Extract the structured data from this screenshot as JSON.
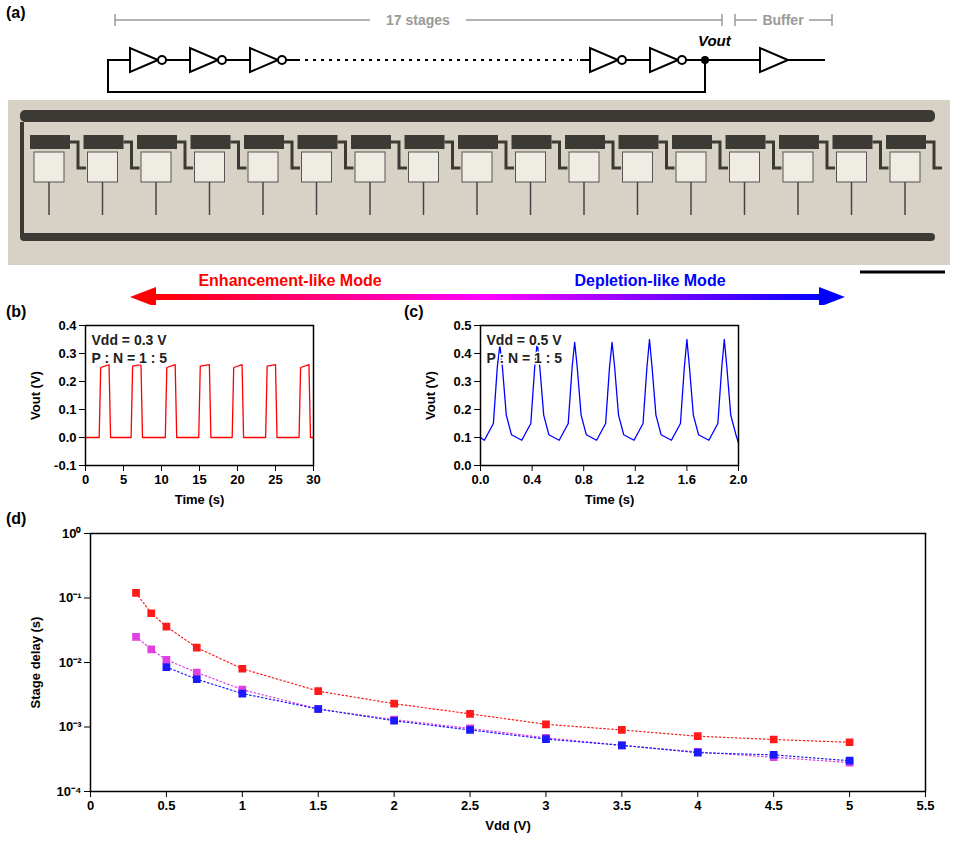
{
  "schematic": {
    "panel_label": "(a)",
    "stages_label": "17 stages",
    "buffer_label": "Buffer",
    "output_label": "Vout",
    "mode_arrow": {
      "left": "Enhancement-like Mode",
      "left_color": "#ff0000",
      "right": "Depletion-like Mode",
      "right_color": "#0000ff"
    }
  },
  "chart_data": [
    {
      "type": "line",
      "panel_label": "(b)",
      "xlabel": "Time (s)",
      "ylabel": "Vout (V)",
      "annotations": [
        "Vdd = 0.3 V",
        "P : N = 1 : 5"
      ],
      "xlim": [
        0,
        30
      ],
      "xticks": [
        0,
        5,
        10,
        15,
        20,
        25,
        30
      ],
      "ylim": [
        -0.1,
        0.4
      ],
      "yticks": [
        -0.1,
        {
          "value": 0,
          "label": "0.0"
        },
        0.1,
        0.2,
        0.3,
        0.4
      ],
      "grid": false,
      "x": [
        0,
        1.8,
        2.0,
        3.1,
        3.3,
        6.0,
        6.2,
        7.3,
        7.5,
        10.5,
        10.7,
        11.8,
        12.0,
        14.9,
        15.1,
        16.3,
        16.5,
        19.3,
        19.5,
        20.6,
        20.8,
        23.7,
        23.9,
        25.0,
        25.2,
        28.1,
        28.3,
        29.4,
        29.6,
        30
      ],
      "series": [
        {
          "color": "#ff0000",
          "values": [
            0,
            0,
            0.25,
            0.26,
            0,
            0,
            0.255,
            0.26,
            0,
            0,
            0.25,
            0.26,
            0,
            0,
            0.255,
            0.26,
            0,
            0,
            0.25,
            0.26,
            0,
            0,
            0.255,
            0.26,
            0,
            0,
            0.25,
            0.26,
            0,
            0
          ]
        }
      ]
    },
    {
      "type": "line",
      "panel_label": "(c)",
      "xlabel": "Time (s)",
      "ylabel": "Vout (V)",
      "annotations": [
        "Vdd = 0.5 V",
        "P : N = 1 : 5"
      ],
      "xlim": [
        0,
        2
      ],
      "xticks": [
        {
          "value": 0,
          "label": "0.0"
        },
        0.4,
        0.8,
        1.2,
        1.6,
        {
          "value": 2,
          "label": "2.0"
        }
      ],
      "ylim": [
        0,
        0.5
      ],
      "yticks": [
        {
          "value": 0,
          "label": "0.0"
        },
        0.1,
        0.2,
        0.3,
        0.4,
        0.5
      ],
      "grid": false,
      "x": [
        0,
        0.03,
        0.1,
        0.13,
        0.15,
        0.17,
        0.2,
        0.24,
        0.32,
        0.39,
        0.42,
        0.44,
        0.46,
        0.49,
        0.53,
        0.61,
        0.68,
        0.71,
        0.73,
        0.75,
        0.78,
        0.82,
        0.9,
        0.97,
        1,
        1.02,
        1.04,
        1.07,
        1.11,
        1.19,
        1.26,
        1.29,
        1.31,
        1.33,
        1.36,
        1.4,
        1.48,
        1.55,
        1.58,
        1.6,
        1.62,
        1.65,
        1.69,
        1.77,
        1.84,
        1.87,
        1.89,
        1.91,
        1.94,
        1.98,
        2
      ],
      "series": [
        {
          "color": "#0000ff",
          "values": [
            0.1,
            0.09,
            0.15,
            0.35,
            0.43,
            0.35,
            0.18,
            0.11,
            0.09,
            0.15,
            0.35,
            0.44,
            0.35,
            0.18,
            0.11,
            0.09,
            0.15,
            0.35,
            0.44,
            0.35,
            0.18,
            0.11,
            0.09,
            0.15,
            0.35,
            0.44,
            0.35,
            0.18,
            0.11,
            0.09,
            0.15,
            0.35,
            0.45,
            0.35,
            0.18,
            0.11,
            0.09,
            0.15,
            0.35,
            0.45,
            0.35,
            0.18,
            0.11,
            0.09,
            0.15,
            0.35,
            0.45,
            0.35,
            0.18,
            0.11,
            0.08
          ]
        }
      ]
    },
    {
      "type": "line",
      "panel_label": "(d)",
      "xlabel": "Vdd (V)",
      "ylabel": "Stage delay (s)",
      "log": "y",
      "grid": false,
      "marker": "square",
      "line_style": "dotted",
      "xlim": [
        0,
        5.5
      ],
      "xticks": [
        0,
        0.5,
        1,
        1.5,
        2,
        2.5,
        3,
        3.5,
        4,
        4.5,
        5,
        5.5
      ],
      "ylim": [
        0.0001,
        1
      ],
      "yticks": [
        {
          "value": 0.0001,
          "label": "10⁻⁴"
        },
        {
          "value": 0.001,
          "label": "10⁻³"
        },
        {
          "value": 0.01,
          "label": "10⁻²"
        },
        {
          "value": 0.1,
          "label": "10⁻¹"
        },
        {
          "value": 1,
          "label": "10⁰"
        }
      ],
      "x": [
        0.3,
        0.4,
        0.5,
        0.7,
        1,
        1.5,
        2,
        2.5,
        3,
        3.5,
        4,
        4.5,
        5
      ],
      "series": [
        {
          "color": "#ff1a1a",
          "values": [
            0.12,
            0.058,
            0.036,
            0.017,
            0.008,
            0.0036,
            0.0023,
            0.0016,
            0.0011,
            0.0009,
            0.00072,
            0.00064,
            0.00058
          ]
        },
        {
          "color": "#e040e0",
          "values": [
            0.025,
            0.016,
            0.011,
            0.007,
            0.0038,
            0.0019,
            0.0013,
            0.00095,
            0.00068,
            0.00052,
            0.00041,
            0.00034,
            0.00028
          ]
        },
        {
          "color": "#1a1aff",
          "values": [
            null,
            null,
            0.0085,
            0.0055,
            0.0033,
            0.0019,
            0.00125,
            0.0009,
            0.00065,
            0.00052,
            0.0004,
            0.00037,
            0.0003
          ]
        }
      ]
    }
  ]
}
